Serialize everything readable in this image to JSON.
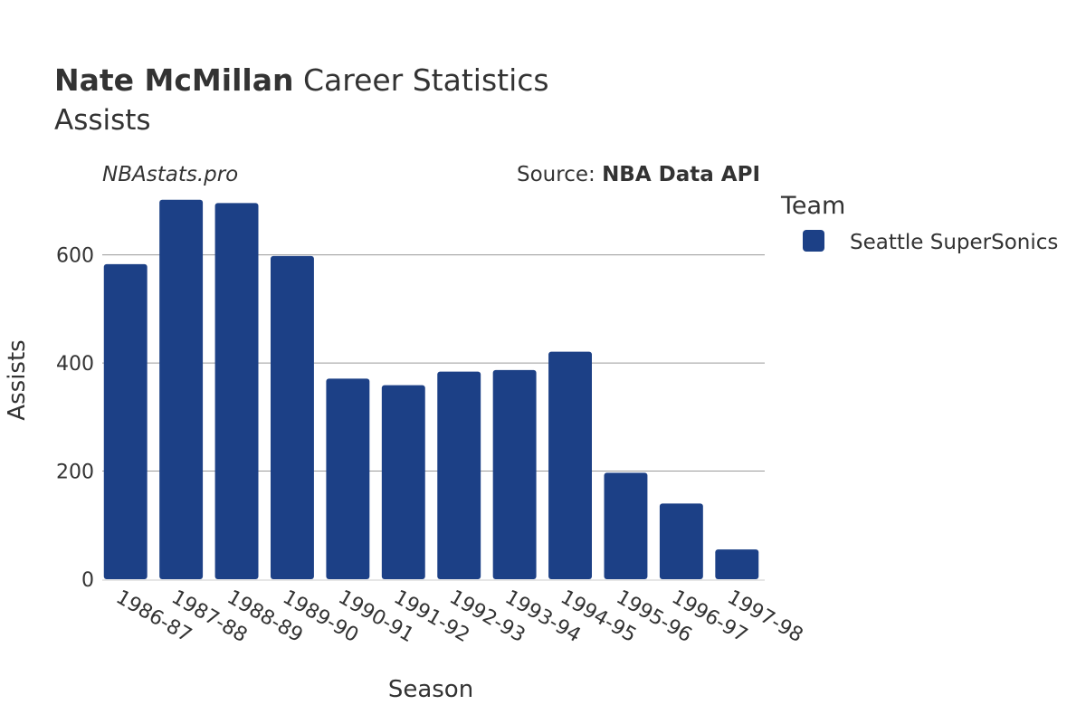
{
  "title": {
    "player": "Nate McMillan",
    "suffix": " Career Statistics",
    "subtitle": "Assists"
  },
  "watermark": "NBAstats.pro",
  "source": {
    "prefix": "Source: ",
    "name": "NBA Data API"
  },
  "legend": {
    "title": "Team",
    "items": [
      {
        "label": "Seattle SuperSonics",
        "color": "#1c4086"
      }
    ]
  },
  "chart_data": {
    "type": "bar",
    "xlabel": "Season",
    "ylabel": "Assists",
    "ylim": [
      0,
      720
    ],
    "yticks": [
      0,
      200,
      400,
      600
    ],
    "grid": true,
    "legend_position": "right",
    "categories": [
      "1986-87",
      "1987-88",
      "1988-89",
      "1989-90",
      "1990-91",
      "1991-92",
      "1992-93",
      "1993-94",
      "1994-95",
      "1995-96",
      "1996-97",
      "1997-98"
    ],
    "series": [
      {
        "name": "Seattle SuperSonics",
        "color": "#1c4086",
        "values": [
          583,
          702,
          696,
          598,
          371,
          359,
          384,
          387,
          421,
          197,
          140,
          55
        ]
      }
    ]
  }
}
